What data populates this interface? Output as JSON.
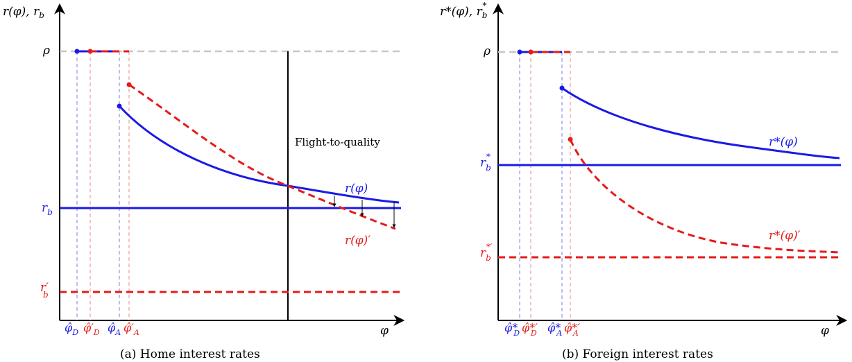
{
  "panel_a": {
    "y_axis_label": "r(φ), r_b",
    "y_label_main": "r(φ), r",
    "y_label_sub": "b",
    "x_axis_label": "φ",
    "rho": "ρ",
    "rb_main": "r",
    "rb_sub": "b",
    "rbp_main": "r′",
    "rbp_sub": "b",
    "curve_blue_label": "r(φ)",
    "curve_red_label": "r(φ)′",
    "flight_label": "Flight-to-quality",
    "tick_phi_D": "φ̂",
    "tick_phi_D_sub": "D",
    "tick_phi_Dp": "φ̂′",
    "tick_phi_Dp_sub": "D",
    "tick_phi_A": "φ̂",
    "tick_phi_A_sub": "A",
    "tick_phi_Ap": "φ̂′",
    "tick_phi_Ap_sub": "A",
    "caption": "(a) Home interest rates"
  },
  "panel_b": {
    "y_label_main": "r*(φ), r",
    "y_label_sub": "b",
    "y_label_sup": "*",
    "x_axis_label": "φ",
    "rho": "ρ",
    "rb_main": "r",
    "rb_sub": "b",
    "rb_sup": "*",
    "rbp_main": "r",
    "rbp_sub": "b",
    "rbp_sup": "*′",
    "curve_blue_label": "r*(φ)",
    "curve_red_label": "r*(φ)′",
    "tick_phi_D": "φ̂*",
    "tick_phi_D_sub": "D",
    "tick_phi_Dp": "φ̂*′",
    "tick_phi_Dp_sub": "D",
    "tick_phi_A": "φ̂*",
    "tick_phi_A_sub": "A",
    "tick_phi_Ap": "φ̂*′",
    "tick_phi_Ap_sub": "A",
    "caption": "(b) Foreign interest rates"
  },
  "colors": {
    "blue": "#1a1ae6",
    "red": "#e61a1a",
    "reference": "#c8c8c8"
  }
}
